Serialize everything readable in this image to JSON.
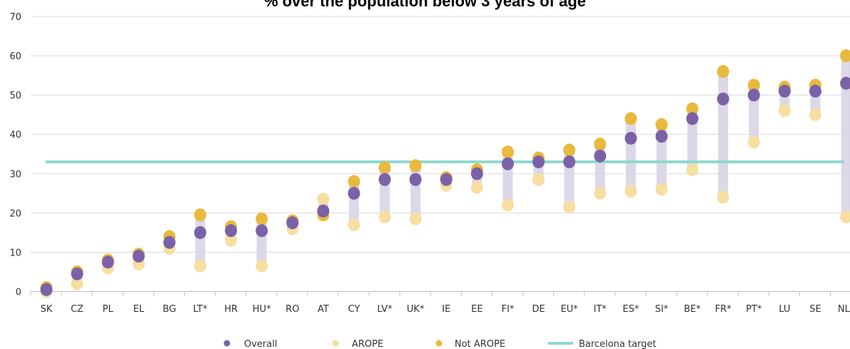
{
  "chart_data": {
    "type": "scatter",
    "title": "% over the population below 3 years of age",
    "categories": [
      "SK",
      "CZ",
      "PL",
      "EL",
      "BG",
      "LT*",
      "HR",
      "HU*",
      "RO",
      "AT",
      "CY",
      "LV*",
      "UK*",
      "IE",
      "EE",
      "FI*",
      "DE",
      "EU*",
      "IT*",
      "ES*",
      "SI*",
      "BE*",
      "FR*",
      "PT*",
      "LU",
      "SE",
      "NL*"
    ],
    "series": [
      {
        "name": "Overall",
        "color": "#7b62a8",
        "values": [
          0.5,
          4.5,
          7.5,
          9,
          12.5,
          15,
          15.5,
          15.5,
          17.5,
          20.5,
          25,
          28.5,
          28.5,
          28.5,
          30,
          32.5,
          33,
          33,
          34.5,
          39,
          39.5,
          44,
          49,
          50,
          51,
          51,
          53
        ]
      },
      {
        "name": "AROPE",
        "color": "#f7dfa1",
        "values": [
          0,
          2,
          6,
          7,
          11,
          6.5,
          13,
          6.5,
          16,
          23.5,
          17,
          19,
          18.5,
          27,
          26.5,
          22,
          28.5,
          21.5,
          25,
          25.5,
          26,
          31,
          24,
          38,
          46,
          45,
          19
        ]
      },
      {
        "name": "Not AROPE",
        "color": "#e9b93e",
        "values": [
          1,
          5,
          8,
          9.5,
          14,
          19.5,
          16.5,
          18.5,
          18,
          19.5,
          28,
          31.5,
          32,
          29,
          31,
          35.5,
          34,
          36,
          37.5,
          44,
          42.5,
          46.5,
          56,
          52.5,
          52,
          52.5,
          60
        ]
      }
    ],
    "reference_line": {
      "name": "Barcelona target",
      "value": 33,
      "color": "#8ed8cc"
    },
    "range_bar_color": "#ddd8e8",
    "ylim": [
      0,
      70
    ],
    "yticks": [
      0,
      10,
      20,
      30,
      40,
      50,
      60,
      70
    ],
    "grid": true,
    "legend_position": "bottom"
  }
}
